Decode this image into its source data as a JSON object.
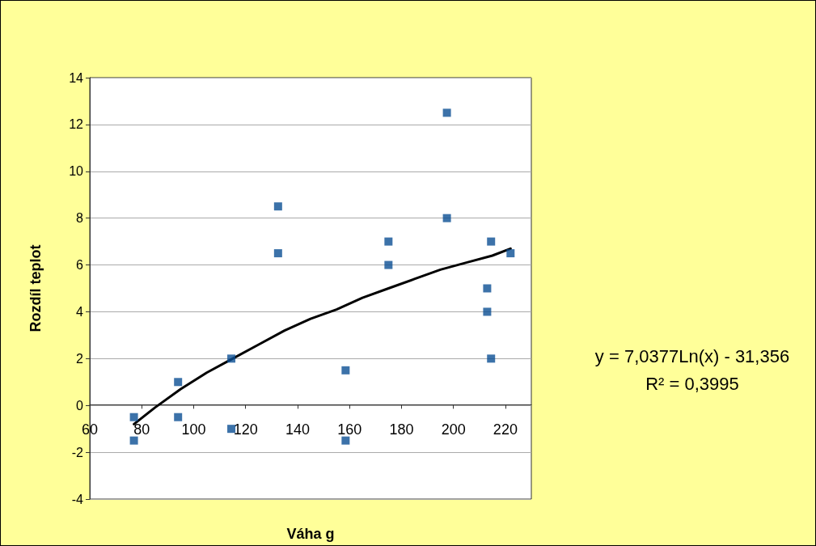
{
  "chart_data": {
    "type": "scatter",
    "xlabel": "Váha g",
    "ylabel": "Rozdíl teplot",
    "xlim": [
      60,
      230
    ],
    "xticks": [
      60,
      80,
      100,
      120,
      140,
      160,
      180,
      200,
      220
    ],
    "ylim": [
      -4,
      14
    ],
    "yticks": [
      -4,
      -2,
      0,
      2,
      4,
      6,
      8,
      10,
      12,
      14
    ],
    "grid": "y",
    "marker": "square",
    "series": [
      {
        "color": "#0b4f94",
        "x": [
          77,
          77,
          94,
          94,
          114.5,
          114.5,
          132.5,
          132.5,
          158.5,
          158.5,
          175,
          175,
          197.5,
          197.5,
          213,
          213,
          214.5,
          214.5,
          222
        ],
        "values": [
          -0.5,
          -1.5,
          1,
          -0.5,
          2,
          -1,
          8.5,
          6.5,
          1.5,
          -1.5,
          7,
          6,
          12.5,
          8,
          5,
          4,
          7,
          2,
          6.5
        ]
      },
      {
        "type": "line",
        "color": "#000000",
        "marker": "none",
        "line_style": "solid",
        "x": [
          77,
          85,
          95,
          105,
          115,
          125,
          135,
          145,
          155,
          165,
          175,
          185,
          195,
          205,
          215,
          222
        ],
        "values": [
          -0.8,
          -0.1,
          0.7,
          1.4,
          2.0,
          2.6,
          3.2,
          3.7,
          4.1,
          4.6,
          5.0,
          5.4,
          5.8,
          6.1,
          6.4,
          6.7
        ]
      }
    ],
    "annotations": [
      "y = 7,0377Ln(x) - 31,356",
      "R² = 0,3995"
    ]
  }
}
